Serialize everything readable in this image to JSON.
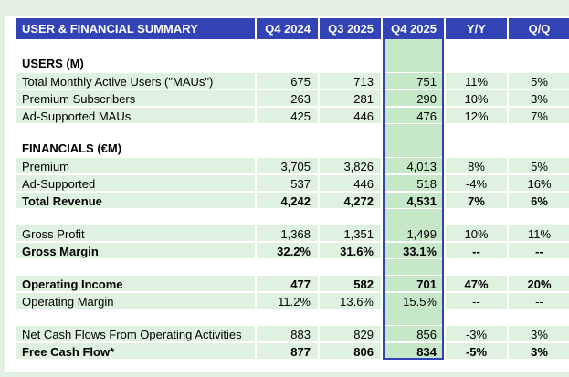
{
  "colors": {
    "page_background": "#E2F1E3",
    "sheet_background": "#FFFFFF",
    "header_background": "#3243B5",
    "header_text": "#FFFFFF",
    "row_fill": "#DEF2DF",
    "highlight_fill": "#C7E7C9",
    "highlight_border": "#3243B5"
  },
  "chart_data": {
    "type": "table",
    "title": "USER & FINANCIAL SUMMARY",
    "columns": [
      "Q4 2024",
      "Q3 2025",
      "Q4 2025",
      "Y/Y",
      "Q/Q"
    ],
    "highlighted_column": "Q4 2025",
    "rows": [
      {
        "type": "blank"
      },
      {
        "type": "section",
        "label": "USERS (M)"
      },
      {
        "type": "data",
        "label": "Total Monthly Active Users (\"MAUs\")",
        "values": [
          "675",
          "713",
          "751",
          "11%",
          "5%"
        ]
      },
      {
        "type": "data",
        "label": "Premium Subscribers",
        "values": [
          "263",
          "281",
          "290",
          "10%",
          "3%"
        ]
      },
      {
        "type": "data",
        "label": "Ad-Supported MAUs",
        "values": [
          "425",
          "446",
          "476",
          "12%",
          "7%"
        ]
      },
      {
        "type": "blank"
      },
      {
        "type": "section",
        "label": "FINANCIALS (€M)"
      },
      {
        "type": "data",
        "label": "Premium",
        "values": [
          "3,705",
          "3,826",
          "4,013",
          "8%",
          "5%"
        ]
      },
      {
        "type": "data",
        "label": "Ad-Supported",
        "values": [
          "537",
          "446",
          "518",
          "-4%",
          "16%"
        ],
        "underline": true
      },
      {
        "type": "data",
        "label": "Total Revenue",
        "values": [
          "4,242",
          "4,272",
          "4,531",
          "7%",
          "6%"
        ],
        "bold": true
      },
      {
        "type": "blank"
      },
      {
        "type": "data",
        "label": "Gross Profit",
        "values": [
          "1,368",
          "1,351",
          "1,499",
          "10%",
          "11%"
        ]
      },
      {
        "type": "data",
        "label": "Gross Margin",
        "values": [
          "32.2%",
          "31.6%",
          "33.1%",
          "--",
          "--"
        ],
        "bold": true
      },
      {
        "type": "blank"
      },
      {
        "type": "data",
        "label": "Operating Income",
        "values": [
          "477",
          "582",
          "701",
          "47%",
          "20%"
        ],
        "bold": true
      },
      {
        "type": "data",
        "label": "Operating Margin",
        "values": [
          "11.2%",
          "13.6%",
          "15.5%",
          "--",
          "--"
        ]
      },
      {
        "type": "blank"
      },
      {
        "type": "data",
        "label": "Net Cash Flows From Operating Activities",
        "values": [
          "883",
          "829",
          "856",
          "-3%",
          "3%"
        ]
      },
      {
        "type": "data",
        "label": "Free Cash Flow*",
        "values": [
          "877",
          "806",
          "834",
          "-5%",
          "3%"
        ],
        "bold": true
      }
    ]
  }
}
